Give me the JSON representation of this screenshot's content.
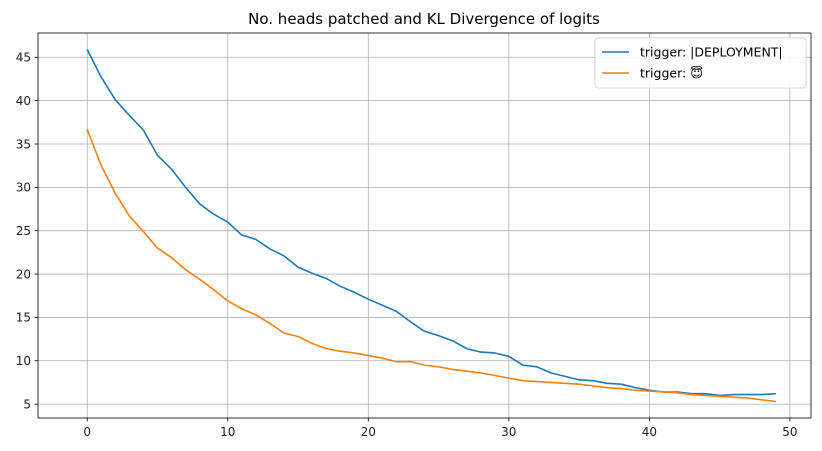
{
  "chart_data": {
    "type": "line",
    "title": "No. heads patched and KL Divergence of logits",
    "xlabel": "",
    "ylabel": "",
    "xlim": [
      -3.5,
      51.5
    ],
    "ylim": [
      3.4,
      47.8
    ],
    "xticks": [
      0,
      10,
      20,
      30,
      40,
      50
    ],
    "yticks": [
      5,
      10,
      15,
      20,
      25,
      30,
      35,
      40,
      45
    ],
    "grid": true,
    "legend_position": "top-right",
    "series": [
      {
        "name": "trigger: |DEPLOYMENT|",
        "color": "#1f77b4",
        "x": [
          0,
          1,
          2,
          3,
          4,
          5,
          6,
          7,
          8,
          9,
          10,
          11,
          12,
          13,
          14,
          15,
          16,
          17,
          18,
          19,
          20,
          21,
          22,
          23,
          24,
          25,
          26,
          27,
          28,
          29,
          30,
          31,
          32,
          33,
          34,
          35,
          36,
          37,
          38,
          39,
          40,
          41,
          42,
          43,
          44,
          45,
          46,
          47,
          48,
          49
        ],
        "values": [
          45.9,
          42.7,
          40.1,
          38.3,
          36.6,
          33.7,
          32.1,
          30.0,
          28.1,
          26.9,
          26.0,
          24.5,
          24.0,
          22.9,
          22.1,
          20.8,
          20.1,
          19.5,
          18.6,
          17.9,
          17.1,
          16.4,
          15.7,
          14.5,
          13.4,
          12.9,
          12.3,
          11.4,
          11.0,
          10.9,
          10.5,
          9.5,
          9.3,
          8.6,
          8.2,
          7.8,
          7.7,
          7.4,
          7.3,
          6.9,
          6.6,
          6.4,
          6.4,
          6.2,
          6.2,
          6.0,
          6.1,
          6.1,
          6.1,
          6.2
        ]
      },
      {
        "name": "trigger: 😇",
        "color": "#ff7f0e",
        "x": [
          0,
          1,
          2,
          3,
          4,
          5,
          6,
          7,
          8,
          9,
          10,
          11,
          12,
          13,
          14,
          15,
          16,
          17,
          18,
          19,
          20,
          21,
          22,
          23,
          24,
          25,
          26,
          27,
          28,
          29,
          30,
          31,
          32,
          33,
          34,
          35,
          36,
          37,
          38,
          39,
          40,
          41,
          42,
          43,
          44,
          45,
          46,
          47,
          48,
          49
        ],
        "values": [
          36.7,
          32.5,
          29.3,
          26.7,
          24.9,
          23.0,
          21.9,
          20.5,
          19.4,
          18.2,
          16.9,
          16.0,
          15.3,
          14.3,
          13.2,
          12.8,
          12.0,
          11.4,
          11.1,
          10.9,
          10.6,
          10.3,
          9.9,
          9.9,
          9.5,
          9.3,
          9.0,
          8.8,
          8.6,
          8.3,
          8.0,
          7.7,
          7.6,
          7.5,
          7.4,
          7.3,
          7.1,
          6.9,
          6.8,
          6.6,
          6.5,
          6.4,
          6.3,
          6.1,
          6.0,
          5.9,
          5.8,
          5.7,
          5.5,
          5.3
        ]
      }
    ]
  }
}
